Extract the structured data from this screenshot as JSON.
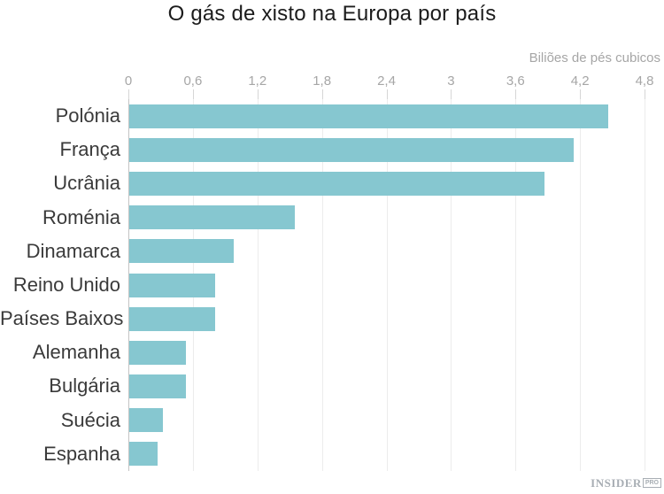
{
  "chart_data": {
    "type": "bar",
    "orientation": "horizontal",
    "title": "O gás de xisto na Europa por país",
    "xlabel": "Biliões de pés cubicos",
    "ylabel": "",
    "categories": [
      "Polónia",
      "França",
      "Ucrânia",
      "Roménia",
      "Dinamarca",
      "Reino Unido",
      "Países Baixos",
      "Alemanha",
      "Bulgária",
      "Suécia",
      "Espanha"
    ],
    "values": [
      4.45,
      4.13,
      3.86,
      1.54,
      0.97,
      0.8,
      0.8,
      0.53,
      0.53,
      0.31,
      0.26
    ],
    "xlim": [
      0,
      4.8
    ],
    "xticks": [
      0,
      0.6,
      1.2,
      1.8,
      2.4,
      3,
      3.6,
      4.2,
      4.8
    ],
    "xtick_labels": [
      "0",
      "0,6",
      "1,2",
      "1,8",
      "2,4",
      "3",
      "3,6",
      "4,2",
      "4,8"
    ],
    "grid": true,
    "legend": false,
    "bar_color": "#86c7d0"
  },
  "colors": {
    "bar": "#86c7d0",
    "title_text": "#1c1c1c",
    "category_text": "#3a3a3a",
    "tick_text": "#a6a6a6",
    "gridline": "#ececec",
    "axis_line": "#c4c4c4",
    "logo": "#a8aeb4"
  },
  "branding": {
    "name": "INSIDER",
    "badge": "PRO"
  }
}
